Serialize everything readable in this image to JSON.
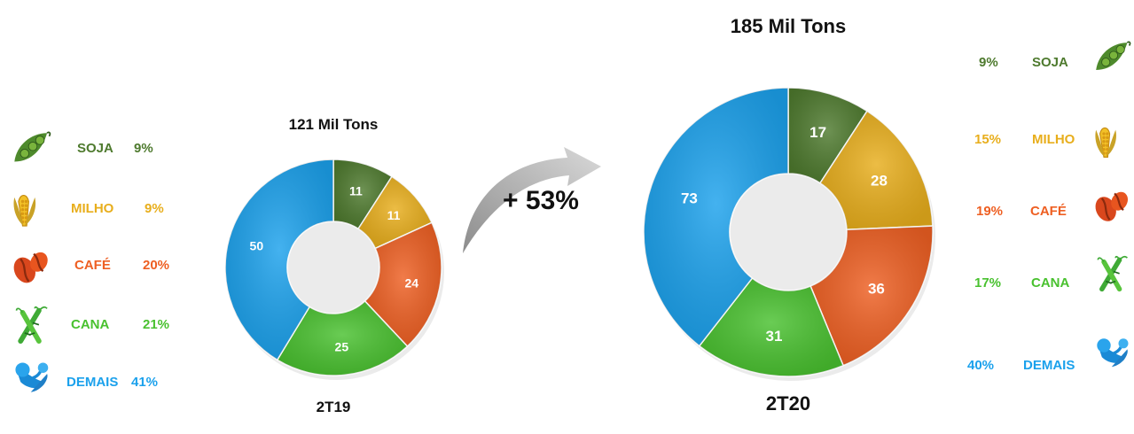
{
  "colors": {
    "SOJA": "#4e7a2e",
    "MILHO": "#e8ae1c",
    "CAFÉ": "#ee5f22",
    "CANA": "#49c12f",
    "DEMAIS": "#1ba1ec"
  },
  "chart_data": [
    {
      "type": "pie",
      "variant": "donut",
      "title": "121 Mil Tons",
      "period": "2T19",
      "categories": [
        "SOJA",
        "MILHO",
        "CAFÉ",
        "CANA",
        "DEMAIS"
      ],
      "values": [
        11,
        11,
        24,
        25,
        50
      ],
      "legend": {
        "placement": "left",
        "items": [
          {
            "label": "SOJA",
            "percent": "9%",
            "icon": "soybean-pod-icon"
          },
          {
            "label": "MILHO",
            "percent": "9%",
            "icon": "corn-icon"
          },
          {
            "label": "CAFÉ",
            "percent": "20%",
            "icon": "coffee-beans-icon"
          },
          {
            "label": "CANA",
            "percent": "21%",
            "icon": "sugarcane-icon"
          },
          {
            "label": "DEMAIS",
            "percent": "41%",
            "icon": "vegetables-icon"
          }
        ]
      }
    },
    {
      "type": "pie",
      "variant": "donut",
      "title": "185 Mil Tons",
      "period": "2T20",
      "categories": [
        "SOJA",
        "MILHO",
        "CAFÉ",
        "CANA",
        "DEMAIS"
      ],
      "values": [
        17,
        28,
        36,
        31,
        73
      ],
      "legend": {
        "placement": "right",
        "items": [
          {
            "label": "SOJA",
            "percent": "9%",
            "icon": "soybean-pod-icon"
          },
          {
            "label": "MILHO",
            "percent": "15%",
            "icon": "corn-icon"
          },
          {
            "label": "CAFÉ",
            "percent": "19%",
            "icon": "coffee-beans-icon"
          },
          {
            "label": "CANA",
            "percent": "17%",
            "icon": "sugarcane-icon"
          },
          {
            "label": "DEMAIS",
            "percent": "40%",
            "icon": "vegetables-icon"
          }
        ]
      }
    }
  ],
  "growth": {
    "label": "+ 53%",
    "icon": "curved-arrow-icon"
  }
}
